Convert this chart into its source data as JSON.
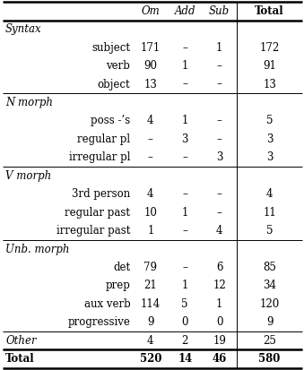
{
  "rows": [
    {
      "label": "Syntax",
      "italic": true,
      "header": true,
      "bold": false,
      "om": "",
      "add": "",
      "sub": "",
      "total": ""
    },
    {
      "label": "subject",
      "italic": false,
      "header": false,
      "bold": false,
      "om": "171",
      "add": "–",
      "sub": "1",
      "total": "172"
    },
    {
      "label": "verb",
      "italic": false,
      "header": false,
      "bold": false,
      "om": "90",
      "add": "1",
      "sub": "–",
      "total": "91"
    },
    {
      "label": "object",
      "italic": false,
      "header": false,
      "bold": false,
      "om": "13",
      "add": "–",
      "sub": "–",
      "total": "13"
    },
    {
      "label": "N morph",
      "italic": true,
      "header": true,
      "bold": false,
      "om": "",
      "add": "",
      "sub": "",
      "total": ""
    },
    {
      "label": "poss -’s",
      "italic": false,
      "header": false,
      "bold": false,
      "om": "4",
      "add": "1",
      "sub": "–",
      "total": "5"
    },
    {
      "label": "regular pl",
      "italic": false,
      "header": false,
      "bold": false,
      "om": "–",
      "add": "3",
      "sub": "–",
      "total": "3"
    },
    {
      "label": "irregular pl",
      "italic": false,
      "header": false,
      "bold": false,
      "om": "–",
      "add": "–",
      "sub": "3",
      "total": "3"
    },
    {
      "label": "V morph",
      "italic": true,
      "header": true,
      "bold": false,
      "om": "",
      "add": "",
      "sub": "",
      "total": ""
    },
    {
      "label": "3rd person",
      "italic": false,
      "header": false,
      "bold": false,
      "om": "4",
      "add": "–",
      "sub": "–",
      "total": "4"
    },
    {
      "label": "regular past",
      "italic": false,
      "header": false,
      "bold": false,
      "om": "10",
      "add": "1",
      "sub": "–",
      "total": "11"
    },
    {
      "label": "irregular past",
      "italic": false,
      "header": false,
      "bold": false,
      "om": "1",
      "add": "–",
      "sub": "4",
      "total": "5"
    },
    {
      "label": "Unb. morph",
      "italic": true,
      "header": true,
      "bold": false,
      "om": "",
      "add": "",
      "sub": "",
      "total": ""
    },
    {
      "label": "det",
      "italic": false,
      "header": false,
      "bold": false,
      "om": "79",
      "add": "–",
      "sub": "6",
      "total": "85"
    },
    {
      "label": "prep",
      "italic": false,
      "header": false,
      "bold": false,
      "om": "21",
      "add": "1",
      "sub": "12",
      "total": "34"
    },
    {
      "label": "aux verb",
      "italic": false,
      "header": false,
      "bold": false,
      "om": "114",
      "add": "5",
      "sub": "1",
      "total": "120"
    },
    {
      "label": "progressive",
      "italic": false,
      "header": false,
      "bold": false,
      "om": "9",
      "add": "0",
      "sub": "0",
      "total": "9"
    },
    {
      "label": "Other",
      "italic": true,
      "header": false,
      "bold": false,
      "om": "4",
      "add": "2",
      "sub": "19",
      "total": "25"
    },
    {
      "label": "Total",
      "italic": false,
      "header": false,
      "bold": true,
      "om": "520",
      "add": "14",
      "sub": "46",
      "total": "580"
    }
  ],
  "figsize": [
    3.39,
    4.13
  ],
  "dpi": 100,
  "font_size": 8.5,
  "col_labels": [
    "Om",
    "Add",
    "Sub",
    "Total"
  ],
  "section_dividers_after_data_row": [
    3,
    7,
    11,
    16,
    17
  ],
  "total_row_idx": 18,
  "thick_lw": 1.8,
  "thin_lw": 0.7
}
